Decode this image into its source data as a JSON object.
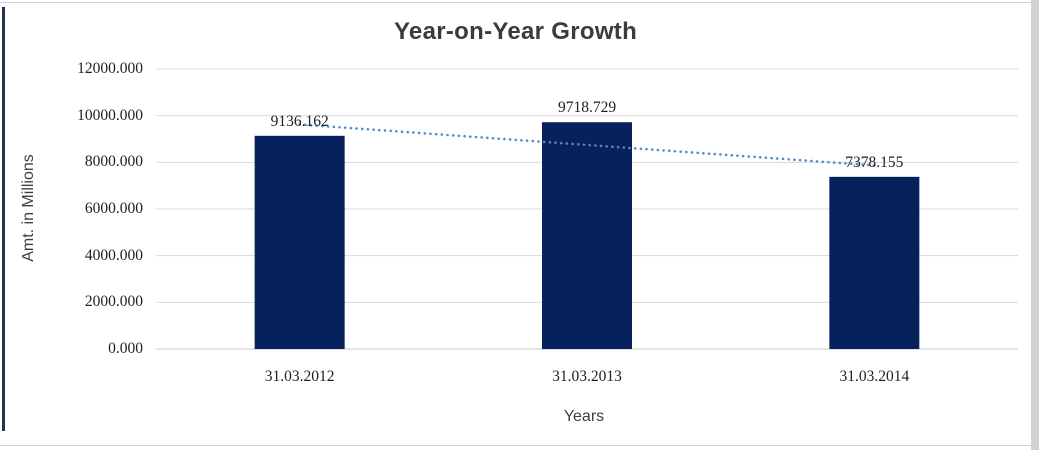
{
  "chart_data": {
    "type": "bar",
    "title": "Year-on-Year Growth",
    "categories": [
      "31.03.2012",
      "31.03.2013",
      "31.03.2014"
    ],
    "values": [
      9136.162,
      9718.729,
      7378.155
    ],
    "data_labels": [
      "9136.162",
      "9718.729",
      "7378.155"
    ],
    "xlabel": "Years",
    "ylabel": "Amt. in Millions",
    "ylim": [
      0,
      12000
    ],
    "ytick_step": 2000,
    "ytick_labels": [
      "12000.000",
      "10000.000",
      "8000.000",
      "6000.000",
      "4000.000",
      "2000.000",
      "0.000"
    ],
    "grid": true,
    "legend": "none",
    "trendline": {
      "type": "linear",
      "style": "dotted"
    }
  },
  "colors": {
    "bar": "#06215C",
    "trendline": "#5288CC",
    "gridline": "#D9D9D9",
    "axis_line": "#C9C9C9",
    "title_text": "#3B3B3B",
    "axis_title_text": "#3F3F3F",
    "tick_text": "#1F1F1F",
    "data_label_text": "#1F1F1F",
    "left_border": "#25324B",
    "frame_lines": "#D2D2D2"
  }
}
